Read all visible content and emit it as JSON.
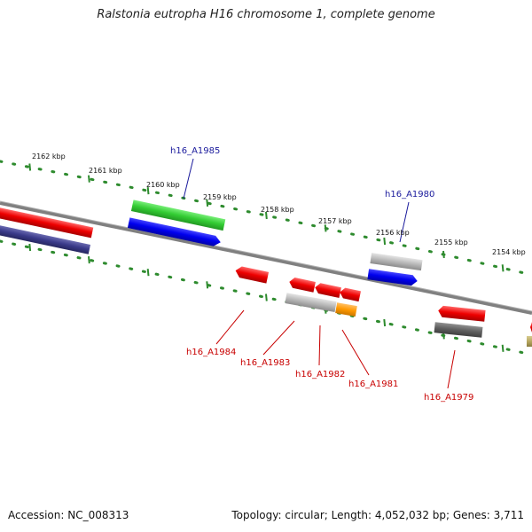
{
  "title": "Ralstonia eutropha H16 chromosome 1, complete genome",
  "footer": {
    "accession": "Accession: NC_008313",
    "summary": "Topology: circular; Length: 4,052,032 bp; Genes: 3,711"
  },
  "ruler_labels": [
    "2162 kbp",
    "2161 kbp",
    "2160 kbp",
    "2159 kbp",
    "2158 kbp",
    "2157 kbp",
    "2156 kbp",
    "2155 kbp",
    "2154 kbp"
  ],
  "gene_labels": {
    "forward": [
      {
        "name": "h16_A1985",
        "color": "#1a1a9c"
      },
      {
        "name": "h16_A1980",
        "color": "#1a1a9c"
      }
    ],
    "reverse": [
      {
        "name": "h16_A1984",
        "color": "#c80000"
      },
      {
        "name": "h16_A1983",
        "color": "#c80000"
      },
      {
        "name": "h16_A1982",
        "color": "#c80000"
      },
      {
        "name": "h16_A1981",
        "color": "#c80000"
      },
      {
        "name": "h16_A1979",
        "color": "#c80000"
      }
    ]
  },
  "colors": {
    "backbone": "#7a7a7a",
    "tick": "#2e8b2e",
    "green": "#33cc33",
    "blue": "#0000ee",
    "navy": "#3a3a8a",
    "red": "#ee0000",
    "silver": "#b8b8b8",
    "dark_gray": "#606060",
    "orange": "#ff9900",
    "olive": "#b8a860"
  }
}
